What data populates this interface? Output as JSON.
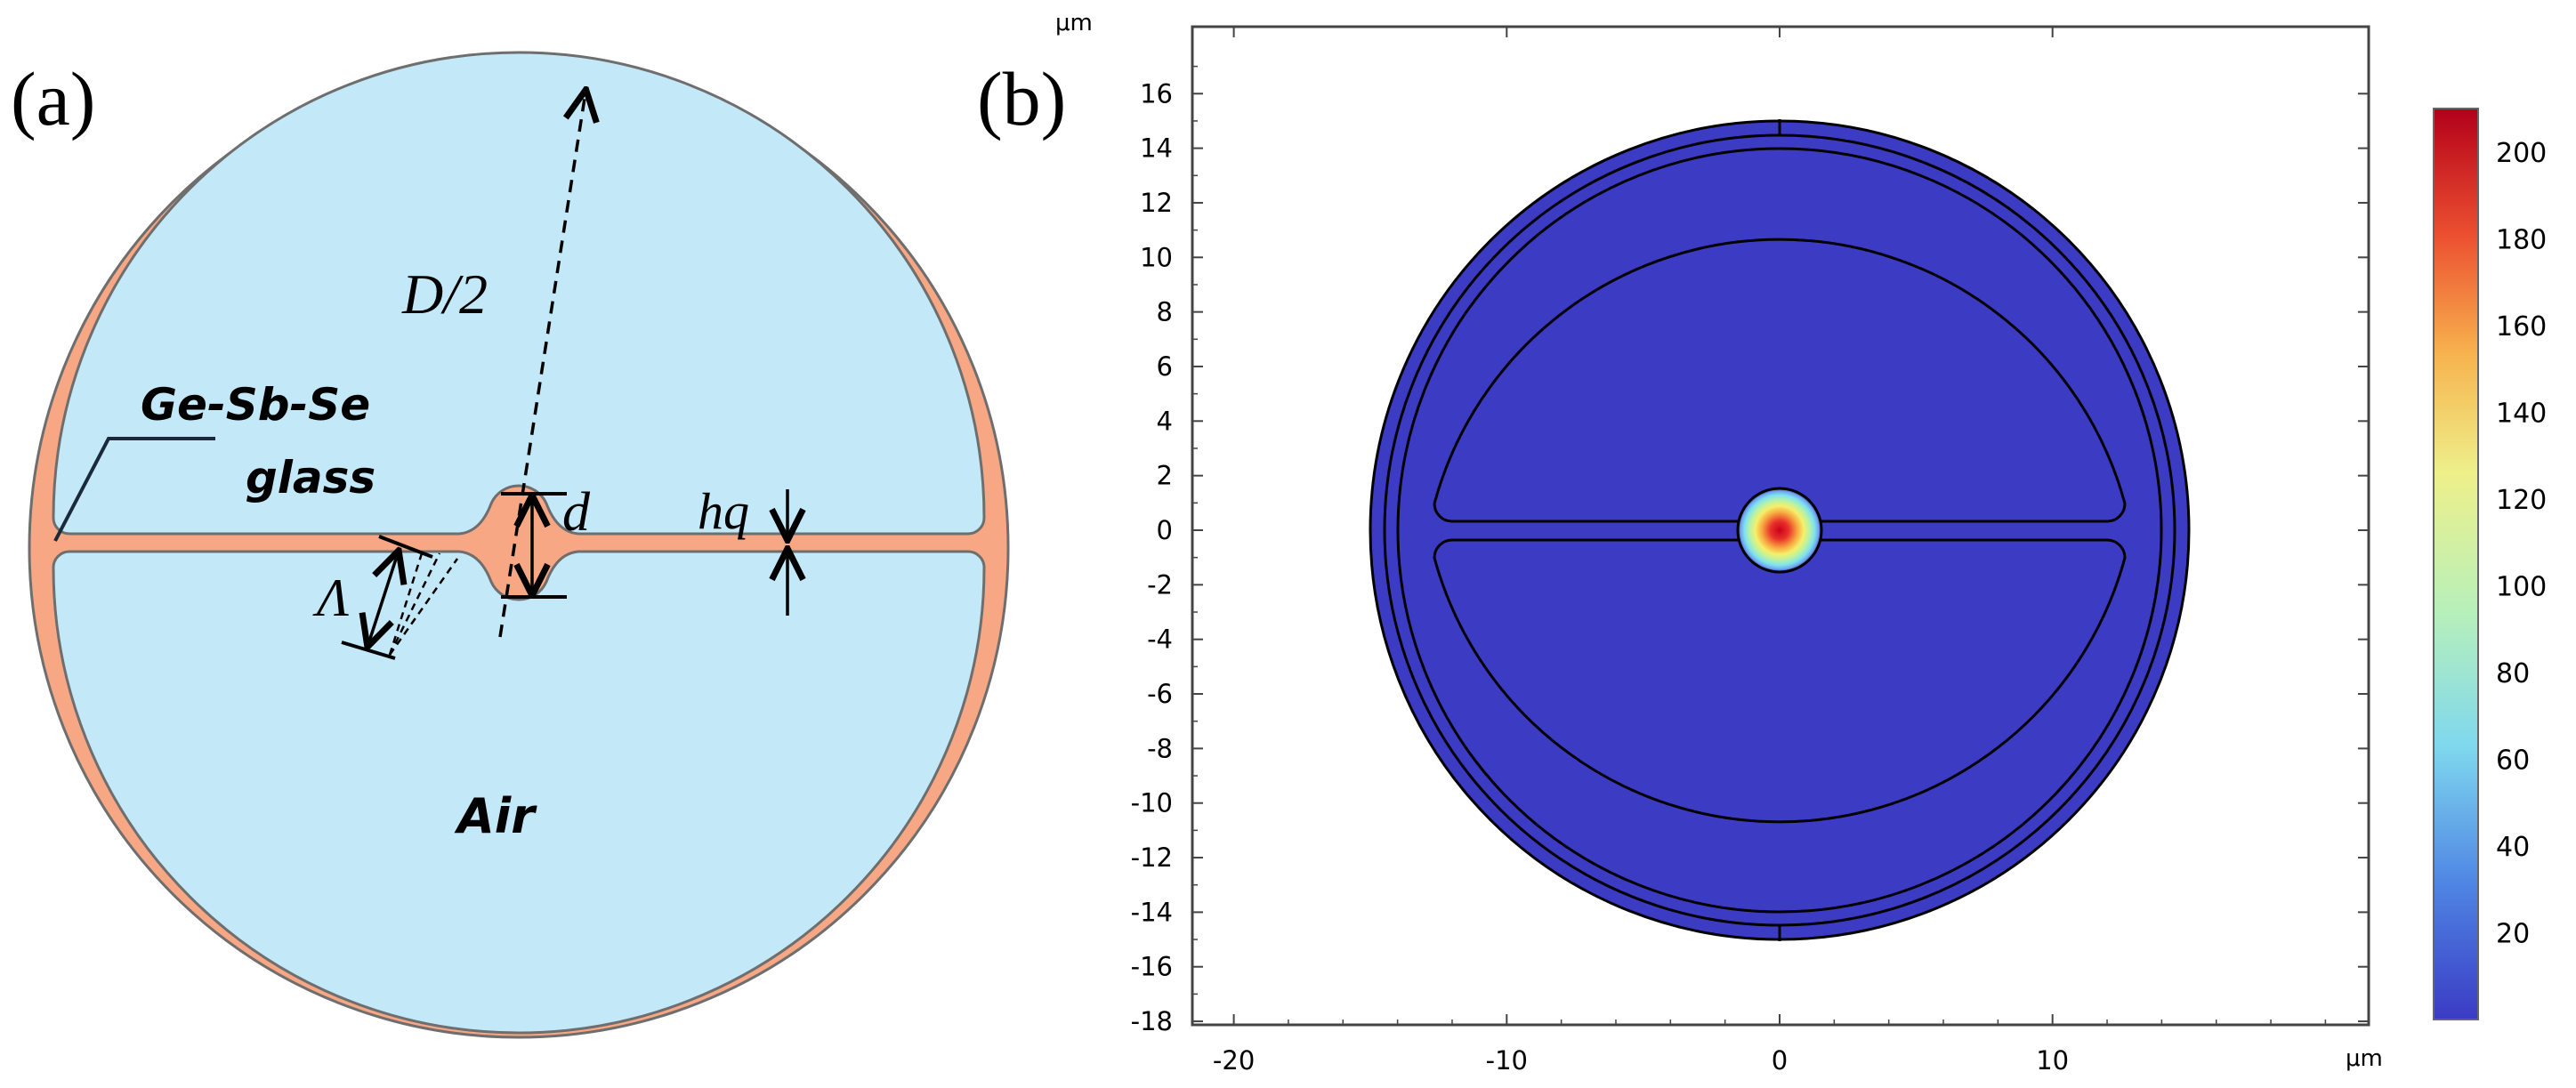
{
  "panel_a": {
    "label": "(a)",
    "labels": {
      "diameter": "D/2",
      "material_line1": "Ge-Sb-Se",
      "material_line2": "glass",
      "core": "d",
      "bridge": "hq",
      "pitch": "Λ",
      "air": "Air"
    },
    "colors": {
      "glass": "#F7A784",
      "air": "#C3E9F9",
      "outline": "#6e6e6e"
    }
  },
  "panel_b": {
    "label": "(b)",
    "axis_unit_top": "μm",
    "axis_unit_right": "μm",
    "y_ticks": [
      "16",
      "14",
      "12",
      "10",
      "8",
      "6",
      "4",
      "2",
      "0",
      "-2",
      "-4",
      "-6",
      "-8",
      "-10",
      "-12",
      "-14",
      "-16",
      "-18"
    ],
    "x_ticks": [
      "-20",
      "-10",
      "0",
      "10"
    ],
    "colorbar_ticks": [
      "200",
      "180",
      "160",
      "140",
      "120",
      "100",
      "80",
      "60",
      "40",
      "20"
    ],
    "colors": {
      "field_background": "#3B3BC4",
      "outline": "#000000"
    }
  },
  "chart_data": {
    "type": "heatmap",
    "title": "",
    "xlabel": "μm",
    "ylabel": "μm",
    "xlim": [
      -21,
      21
    ],
    "ylim": [
      -18.4,
      18.2
    ],
    "x_ticks": [
      -20,
      -10,
      0,
      10
    ],
    "y_ticks": [
      16,
      14,
      12,
      10,
      8,
      6,
      4,
      2,
      0,
      -2,
      -4,
      -6,
      -8,
      -10,
      -12,
      -14,
      -16,
      -18
    ],
    "colorbar": {
      "range": [
        0,
        210
      ],
      "ticks": [
        20,
        40,
        60,
        80,
        100,
        120,
        140,
        160,
        180,
        200
      ]
    },
    "fiber_outer_radius": 15,
    "mode_peak": {
      "x": 0,
      "y": 0,
      "value": 205
    }
  }
}
